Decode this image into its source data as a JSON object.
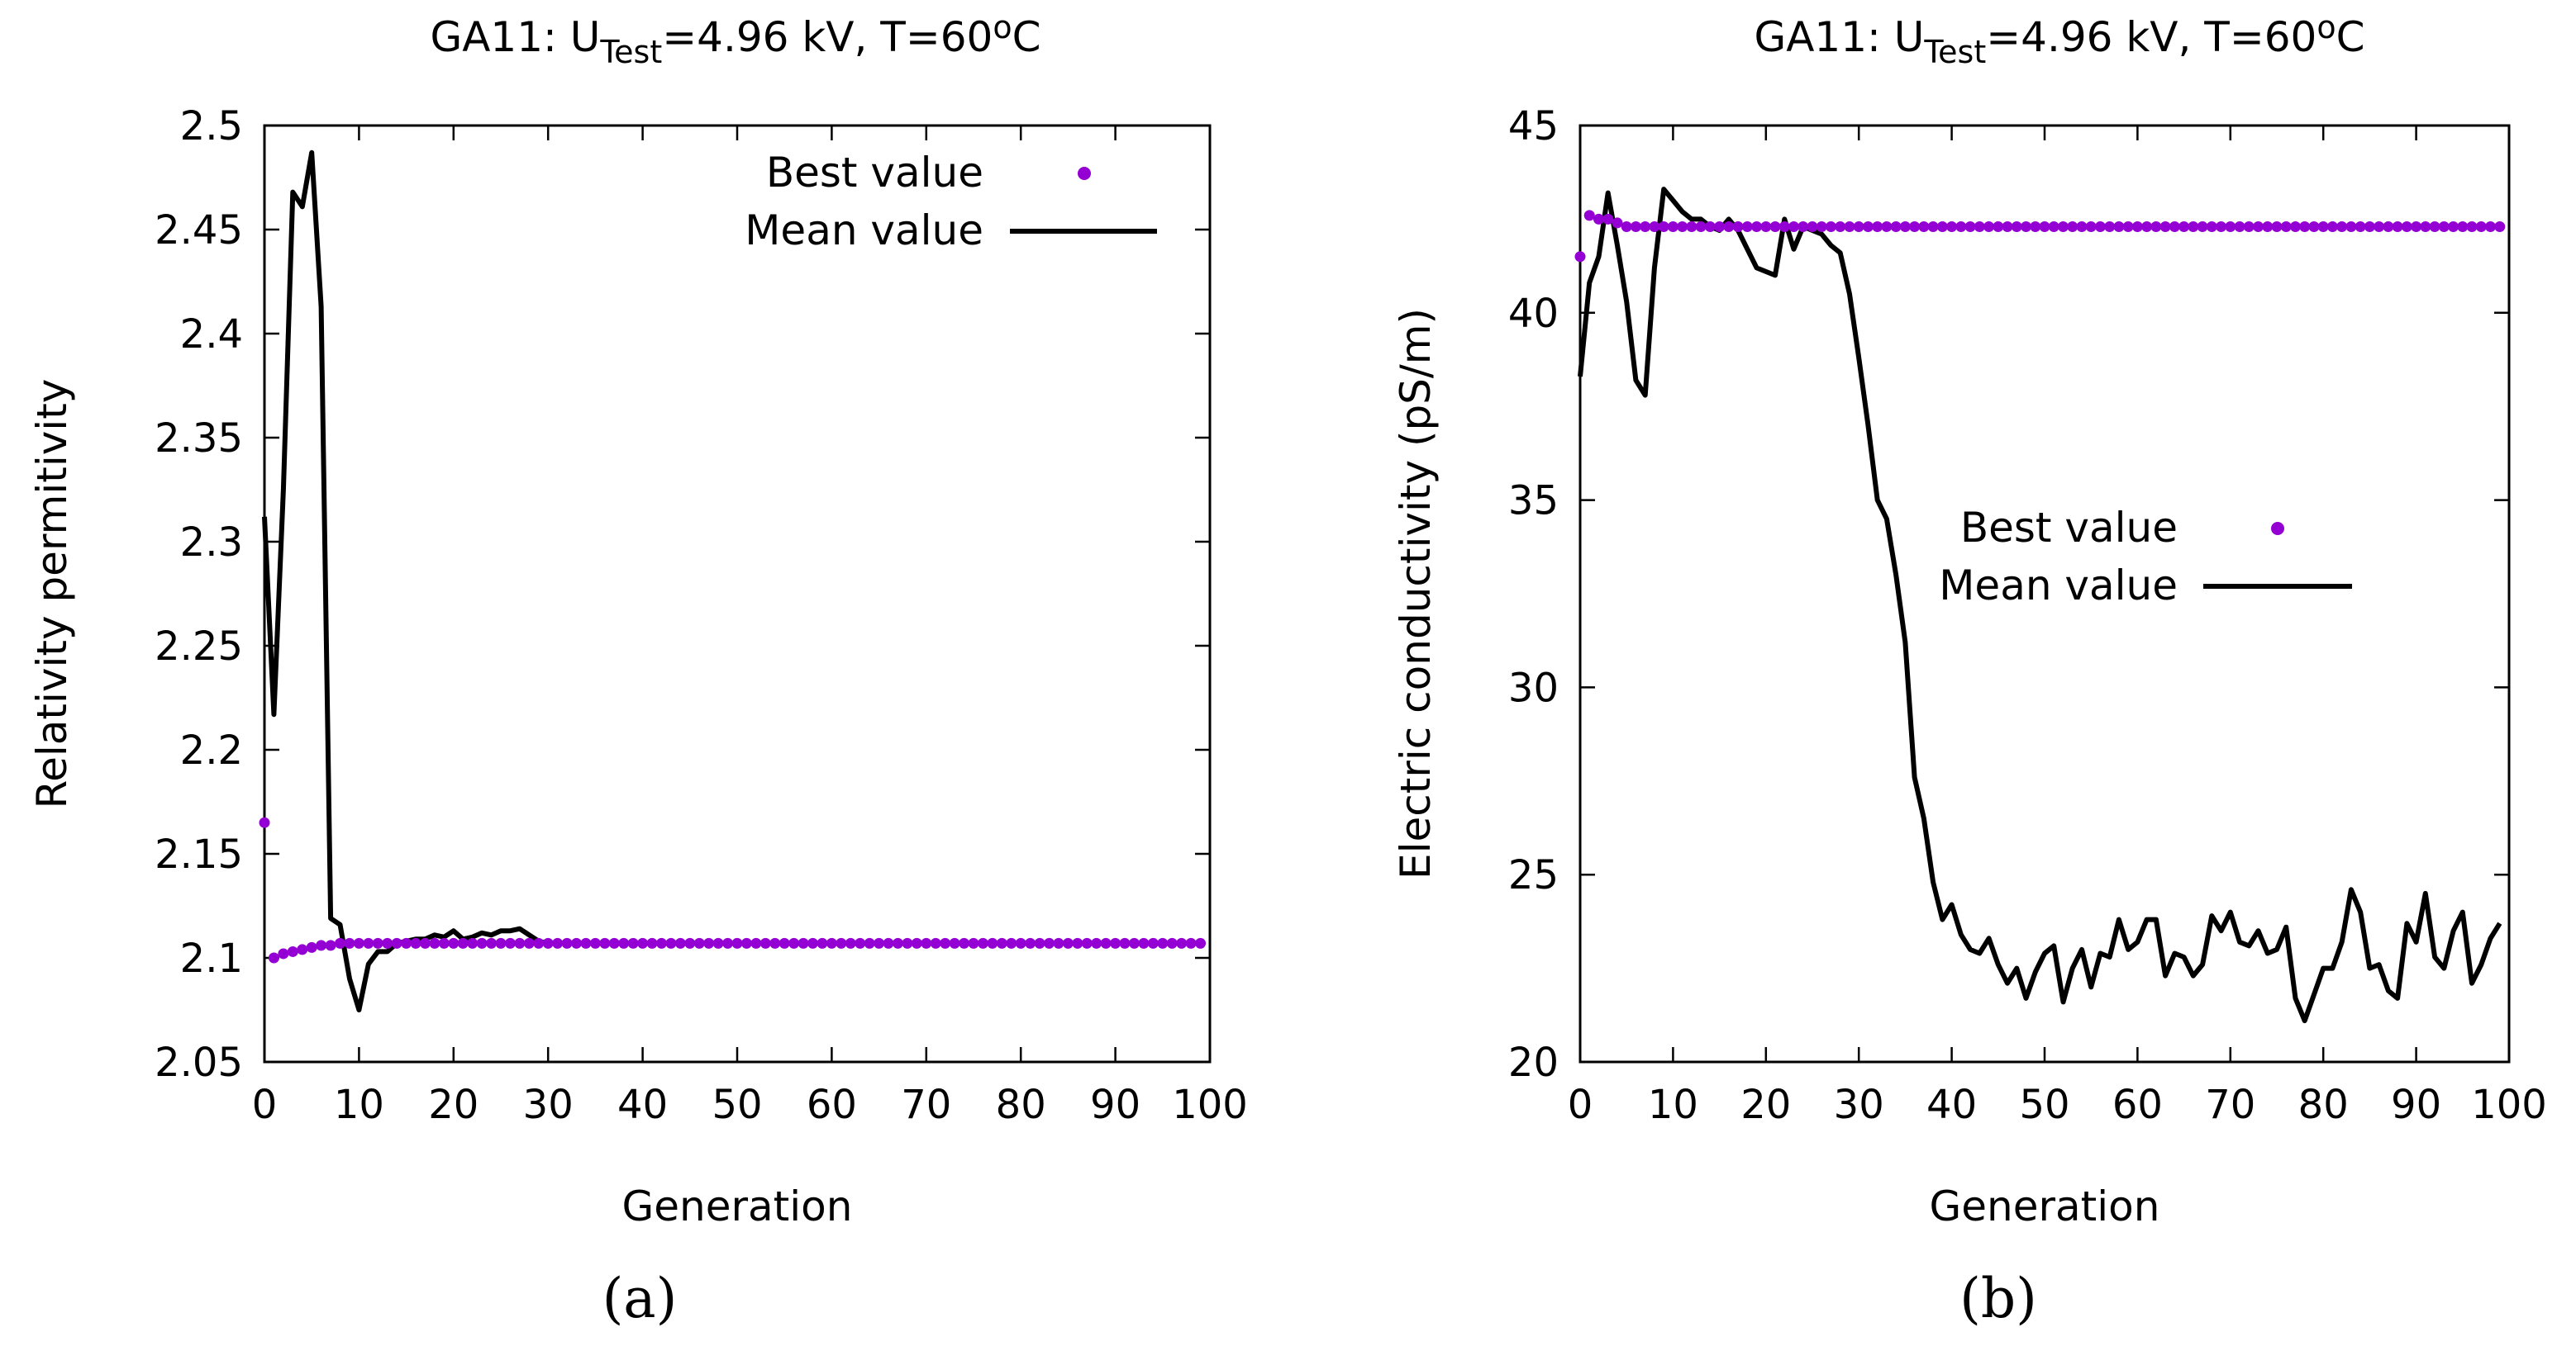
{
  "figure": {
    "captions": [
      "(a)",
      "(b)"
    ],
    "legend": {
      "best": "Best value",
      "mean": "Mean value"
    },
    "colors": {
      "best": "#9400d3",
      "mean": "#000000"
    }
  },
  "chart_data": [
    {
      "type": "line",
      "title": {
        "prefix": "GA11: U",
        "sub": "Test",
        "suffix": "=4.96 kV, T=60",
        "sup": "o",
        "end": "C"
      },
      "xlabel": "Generation",
      "ylabel": "Relativity permitivity",
      "xlim": [
        0,
        100
      ],
      "ylim": [
        2.05,
        2.5
      ],
      "xticks": [
        0,
        10,
        20,
        30,
        40,
        50,
        60,
        70,
        80,
        90,
        100
      ],
      "yticks": [
        2.05,
        2.1,
        2.15,
        2.2,
        2.25,
        2.3,
        2.35,
        2.4,
        2.45,
        2.5
      ],
      "ytick_labels": [
        "2.05",
        "2.1",
        "2.15",
        "2.2",
        "2.25",
        "2.3",
        "2.35",
        "2.4",
        "2.45",
        "2.5"
      ],
      "legend_position": "top-right",
      "series": [
        {
          "name": "Mean value",
          "style": "line",
          "values": [
            2.312,
            2.217,
            2.325,
            2.468,
            2.461,
            2.487,
            2.413,
            2.119,
            2.116,
            2.09,
            2.075,
            2.097,
            2.103,
            2.103,
            2.107,
            2.108,
            2.109,
            2.109,
            2.111,
            2.11,
            2.113,
            2.109,
            2.11,
            2.112,
            2.111,
            2.113,
            2.113,
            2.114,
            2.111,
            2.108,
            2.107,
            2.107,
            2.107,
            2.107,
            2.107,
            2.107,
            2.107,
            2.107,
            2.107,
            2.107,
            2.107,
            2.107,
            2.107,
            2.107,
            2.107,
            2.107,
            2.107,
            2.107,
            2.107,
            2.107,
            2.107,
            2.107,
            2.107,
            2.107,
            2.107,
            2.107,
            2.107,
            2.107,
            2.107,
            2.107,
            2.107,
            2.107,
            2.107,
            2.107,
            2.107,
            2.107,
            2.107,
            2.107,
            2.107,
            2.107,
            2.107,
            2.107,
            2.107,
            2.107,
            2.107,
            2.107,
            2.107,
            2.107,
            2.107,
            2.107,
            2.107,
            2.107,
            2.107,
            2.107,
            2.107,
            2.107,
            2.107,
            2.107,
            2.107,
            2.107,
            2.107,
            2.107,
            2.107,
            2.107,
            2.107,
            2.107,
            2.107,
            2.107,
            2.107,
            2.107
          ]
        },
        {
          "name": "Best value",
          "style": "points",
          "values": [
            2.165,
            2.1,
            2.102,
            2.103,
            2.104,
            2.105,
            2.106,
            2.106,
            2.107,
            2.107,
            2.107,
            2.107,
            2.107,
            2.107,
            2.107,
            2.107,
            2.107,
            2.107,
            2.107,
            2.107,
            2.107,
            2.107,
            2.107,
            2.107,
            2.107,
            2.107,
            2.107,
            2.107,
            2.107,
            2.107,
            2.107,
            2.107,
            2.107,
            2.107,
            2.107,
            2.107,
            2.107,
            2.107,
            2.107,
            2.107,
            2.107,
            2.107,
            2.107,
            2.107,
            2.107,
            2.107,
            2.107,
            2.107,
            2.107,
            2.107,
            2.107,
            2.107,
            2.107,
            2.107,
            2.107,
            2.107,
            2.107,
            2.107,
            2.107,
            2.107,
            2.107,
            2.107,
            2.107,
            2.107,
            2.107,
            2.107,
            2.107,
            2.107,
            2.107,
            2.107,
            2.107,
            2.107,
            2.107,
            2.107,
            2.107,
            2.107,
            2.107,
            2.107,
            2.107,
            2.107,
            2.107,
            2.107,
            2.107,
            2.107,
            2.107,
            2.107,
            2.107,
            2.107,
            2.107,
            2.107,
            2.107,
            2.107,
            2.107,
            2.107,
            2.107,
            2.107,
            2.107,
            2.107,
            2.107,
            2.107
          ]
        }
      ]
    },
    {
      "type": "line",
      "title": {
        "prefix": "GA11: U",
        "sub": "Test",
        "suffix": "=4.96 kV, T=60",
        "sup": "o",
        "end": "C"
      },
      "xlabel": "Generation",
      "ylabel": "Electric conductivity (pS/m)",
      "xlim": [
        0,
        100
      ],
      "ylim": [
        20,
        45
      ],
      "xticks": [
        0,
        10,
        20,
        30,
        40,
        50,
        60,
        70,
        80,
        90,
        100
      ],
      "yticks": [
        20,
        25,
        30,
        35,
        40,
        45
      ],
      "ytick_labels": [
        "20",
        "25",
        "30",
        "35",
        "40",
        "45"
      ],
      "legend_position": "center-right",
      "series": [
        {
          "name": "Mean value",
          "style": "line",
          "values": [
            38.3,
            40.8,
            41.5,
            43.2,
            41.8,
            40.3,
            38.2,
            37.8,
            41.2,
            43.3,
            43.0,
            42.7,
            42.5,
            42.5,
            42.3,
            42.2,
            42.5,
            42.2,
            41.7,
            41.2,
            41.1,
            41.0,
            42.5,
            41.7,
            42.3,
            42.2,
            42.1,
            41.8,
            41.6,
            40.5,
            38.8,
            37.0,
            35.0,
            34.5,
            33.0,
            31.2,
            27.6,
            26.5,
            24.8,
            23.8,
            24.2,
            23.4,
            23.0,
            22.9,
            23.3,
            22.6,
            22.1,
            22.5,
            21.7,
            22.4,
            22.9,
            23.1,
            21.6,
            22.5,
            23.0,
            22.0,
            22.9,
            22.8,
            23.8,
            23.0,
            23.2,
            23.8,
            23.8,
            22.3,
            22.9,
            22.8,
            22.3,
            22.6,
            23.9,
            23.5,
            24.0,
            23.2,
            23.1,
            23.5,
            22.9,
            23.0,
            23.6,
            21.7,
            21.1,
            21.8,
            22.5,
            22.5,
            23.2,
            24.6,
            24.0,
            22.5,
            22.6,
            21.9,
            21.7,
            23.7,
            23.2,
            24.5,
            22.8,
            22.5,
            23.5,
            24.0,
            22.1,
            22.6,
            23.3,
            23.7
          ]
        },
        {
          "name": "Best value",
          "style": "points",
          "values": [
            41.5,
            42.6,
            42.5,
            42.5,
            42.4,
            42.3,
            42.3,
            42.3,
            42.3,
            42.3,
            42.3,
            42.3,
            42.3,
            42.3,
            42.3,
            42.3,
            42.3,
            42.3,
            42.3,
            42.3,
            42.3,
            42.3,
            42.3,
            42.3,
            42.3,
            42.3,
            42.3,
            42.3,
            42.3,
            42.3,
            42.3,
            42.3,
            42.3,
            42.3,
            42.3,
            42.3,
            42.3,
            42.3,
            42.3,
            42.3,
            42.3,
            42.3,
            42.3,
            42.3,
            42.3,
            42.3,
            42.3,
            42.3,
            42.3,
            42.3,
            42.3,
            42.3,
            42.3,
            42.3,
            42.3,
            42.3,
            42.3,
            42.3,
            42.3,
            42.3,
            42.3,
            42.3,
            42.3,
            42.3,
            42.3,
            42.3,
            42.3,
            42.3,
            42.3,
            42.3,
            42.3,
            42.3,
            42.3,
            42.3,
            42.3,
            42.3,
            42.3,
            42.3,
            42.3,
            42.3,
            42.3,
            42.3,
            42.3,
            42.3,
            42.3,
            42.3,
            42.3,
            42.3,
            42.3,
            42.3,
            42.3,
            42.3,
            42.3,
            42.3,
            42.3,
            42.3,
            42.3,
            42.3,
            42.3,
            42.3
          ]
        }
      ]
    }
  ]
}
